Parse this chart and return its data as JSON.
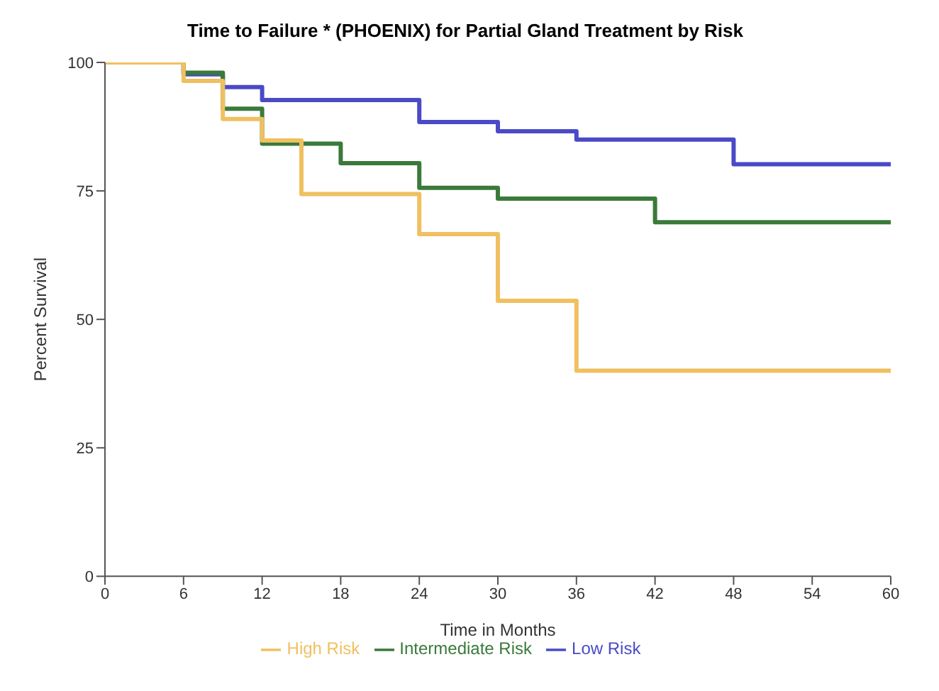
{
  "chart_data": {
    "type": "step",
    "title": "Time to Failure * (PHOENIX) for Partial Gland Treatment by Risk",
    "xlabel": "Time in Months",
    "ylabel": "Percent Survival",
    "xlim": [
      0,
      60
    ],
    "xticks": [
      0,
      6,
      12,
      18,
      24,
      30,
      36,
      42,
      48,
      54,
      60
    ],
    "ylim": [
      0,
      100
    ],
    "yticks": [
      0,
      25,
      50,
      75,
      100
    ],
    "grid": false,
    "legend": "bottom",
    "marker": "none",
    "line_style": "solid",
    "series": [
      {
        "name": "Low Risk",
        "color": "#4a4ac8",
        "x": [
          0,
          6,
          9,
          12,
          24,
          30,
          36,
          48,
          60
        ],
        "values": [
          100,
          97.7,
          95.2,
          92.7,
          88.4,
          86.6,
          85,
          80.2,
          80.2
        ]
      },
      {
        "name": "Intermediate Risk",
        "color": "#3a7a3a",
        "x": [
          0,
          6,
          9,
          12,
          18,
          24,
          30,
          42,
          60
        ],
        "values": [
          100,
          98,
          91,
          84.2,
          80.4,
          75.6,
          73.5,
          68.9,
          68.9
        ]
      },
      {
        "name": "High Risk",
        "color": "#f0c060",
        "x": [
          0,
          6,
          9,
          12,
          15,
          24,
          30,
          36,
          60
        ],
        "values": [
          100,
          96.4,
          89,
          84.8,
          74.4,
          66.6,
          53.6,
          40,
          40
        ]
      }
    ]
  }
}
